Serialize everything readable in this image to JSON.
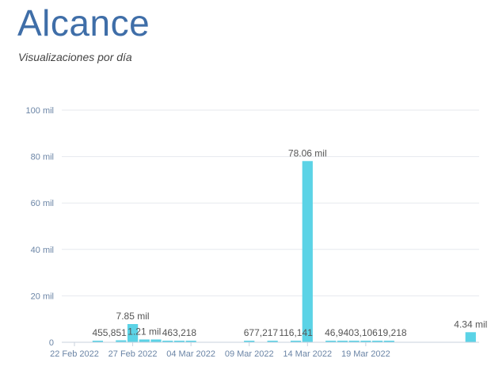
{
  "header": {
    "title": "Alcance",
    "subtitle": "Visualizaciones por día"
  },
  "chart_data": {
    "type": "bar",
    "title": "",
    "xlabel": "",
    "ylabel": "",
    "ylim": [
      0,
      100000
    ],
    "yticks": [
      0,
      20000,
      40000,
      60000,
      80000,
      100000
    ],
    "ytick_labels": [
      "0",
      "20 mil",
      "40 mil",
      "60 mil",
      "80 mil",
      "100 mil"
    ],
    "x_start": "2022-02-22",
    "x_end": "2022-03-29",
    "xtick_dates": [
      "2022-02-22",
      "2022-02-27",
      "2022-03-04",
      "2022-03-09",
      "2022-03-14",
      "2022-03-19"
    ],
    "xtick_labels": [
      "22 Feb 2022",
      "27 Feb 2022",
      "04 Mar 2022",
      "09 Mar 2022",
      "14 Mar 2022",
      "19 Mar 2022"
    ],
    "grid": true,
    "bar_color": "#5bd3e6",
    "series": [
      {
        "points": [
          {
            "date": "2022-02-24",
            "value": 455
          },
          {
            "date": "2022-02-26",
            "value": 851
          },
          {
            "date": "2022-02-27",
            "value": 7850
          },
          {
            "date": "2022-02-28",
            "value": 1210
          },
          {
            "date": "2022-03-01",
            "value": 1210
          },
          {
            "date": "2022-03-02",
            "value": 463
          },
          {
            "date": "2022-03-03",
            "value": 218
          },
          {
            "date": "2022-03-04",
            "value": 218
          },
          {
            "date": "2022-03-09",
            "value": 677
          },
          {
            "date": "2022-03-11",
            "value": 217
          },
          {
            "date": "2022-03-13",
            "value": 116
          },
          {
            "date": "2022-03-14",
            "value": 78060
          },
          {
            "date": "2022-03-16",
            "value": 46
          },
          {
            "date": "2022-03-17",
            "value": 94
          },
          {
            "date": "2022-03-18",
            "value": 3
          },
          {
            "date": "2022-03-19",
            "value": 106
          },
          {
            "date": "2022-03-20",
            "value": 19
          },
          {
            "date": "2022-03-21",
            "value": 218
          },
          {
            "date": "2022-03-28",
            "value": 4340
          }
        ]
      }
    ],
    "data_labels": [
      {
        "date": "2022-02-25",
        "text": "455,851"
      },
      {
        "date": "2022-02-27",
        "text": "7.85 mil"
      },
      {
        "date": "2022-02-28",
        "text": "1.21 mil"
      },
      {
        "date": "2022-03-03",
        "text": "463,218"
      },
      {
        "date": "2022-03-10",
        "text": "677,217"
      },
      {
        "date": "2022-03-13",
        "text": "116,141"
      },
      {
        "date": "2022-03-14",
        "text": "78.06 mil"
      },
      {
        "date": "2022-03-19",
        "text": "46,9403,10619,218"
      },
      {
        "date": "2022-03-28",
        "text": "4.34 mil"
      }
    ]
  }
}
